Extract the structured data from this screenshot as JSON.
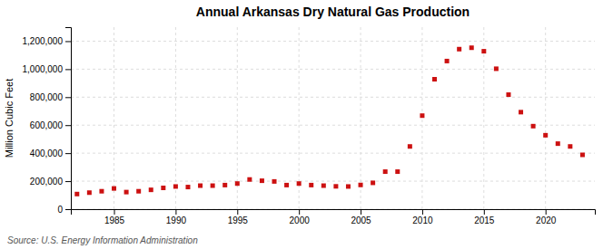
{
  "chart_data": {
    "type": "scatter",
    "title": "Annual Arkansas Dry Natural Gas Production",
    "ylabel": "Million Cubic Feet",
    "annotations": [
      "Source: U.S. Energy Information Administration"
    ],
    "x": [
      1982,
      1983,
      1984,
      1985,
      1986,
      1987,
      1988,
      1989,
      1990,
      1991,
      1992,
      1993,
      1994,
      1995,
      1996,
      1997,
      1998,
      1999,
      2000,
      2001,
      2002,
      2003,
      2004,
      2005,
      2006,
      2007,
      2008,
      2009,
      2010,
      2011,
      2012,
      2013,
      2014,
      2015,
      2016,
      2017,
      2018,
      2019,
      2020,
      2021,
      2022,
      2023
    ],
    "values": [
      108000,
      118000,
      128000,
      148000,
      122000,
      128000,
      138000,
      152000,
      162000,
      158000,
      168000,
      168000,
      172000,
      183000,
      212000,
      203000,
      198000,
      172000,
      183000,
      172000,
      168000,
      163000,
      162000,
      173000,
      188000,
      268000,
      268000,
      448000,
      668000,
      928000,
      1058000,
      1143000,
      1153000,
      1128000,
      1003000,
      818000,
      693000,
      593000,
      528000,
      468000,
      448000,
      388000
    ],
    "color": "#cc1111",
    "marker": "square",
    "grid": true,
    "xlim": [
      1981.5,
      2024
    ],
    "xticks": [
      1985,
      1990,
      1995,
      2000,
      2005,
      2010,
      2015,
      2020
    ],
    "ylim": [
      0,
      1300000
    ],
    "yticks": [
      0,
      {
        "value": 200000,
        "label": "200,000"
      },
      {
        "value": 400000,
        "label": "400,000"
      },
      {
        "value": 600000,
        "label": "600,000"
      },
      {
        "value": 800000,
        "label": "800,000"
      },
      {
        "value": 1000000,
        "label": "1,000,000"
      },
      {
        "value": 1200000,
        "label": "1,200,000"
      }
    ]
  }
}
